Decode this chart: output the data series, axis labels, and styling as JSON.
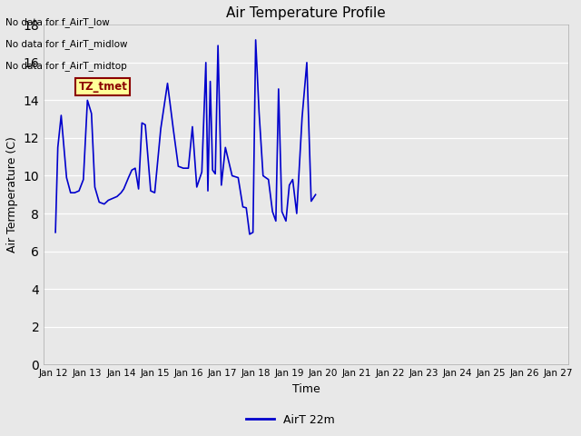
{
  "title": "Air Temperature Profile",
  "xlabel": "Time",
  "ylabel": "Air Termperature (C)",
  "line_color": "#0000cc",
  "line_label": "AirT 22m",
  "ylim": [
    0,
    18
  ],
  "yticks": [
    0,
    2,
    4,
    6,
    8,
    10,
    12,
    14,
    16,
    18
  ],
  "bg_color": "#e8e8e8",
  "annotations_text": [
    "No data for f_AirT_low",
    "No data for f_AirT_midlow",
    "No data for f_AirT_midtop"
  ],
  "tz_label": "TZ_tmet",
  "x_labels": [
    "Jan 12",
    "Jan 13",
    "Jan 14",
    "Jan 15",
    "Jan 16",
    "Jan 17",
    "Jan 18",
    "Jan 19",
    "Jan 20",
    "Jan 21",
    "Jan 22",
    "Jan 23",
    "Jan 24",
    "Jan 25",
    "Jan 26",
    "Jan 27"
  ],
  "x_num": [
    0,
    1,
    2,
    3,
    4,
    5,
    6,
    7,
    8,
    9,
    10,
    11,
    12,
    13,
    14,
    15
  ],
  "x_data": [
    0.05,
    0.12,
    0.22,
    0.38,
    0.5,
    0.62,
    0.75,
    0.88,
    1.0,
    1.12,
    1.22,
    1.35,
    1.5,
    1.62,
    1.75,
    1.88,
    2.0,
    2.08,
    2.15,
    2.22,
    2.32,
    2.42,
    2.52,
    2.62,
    2.72,
    2.88,
    3.0,
    3.18,
    3.38,
    3.55,
    3.7,
    3.85,
    4.0,
    4.12,
    4.25,
    4.4,
    4.52,
    4.58,
    4.65,
    4.72,
    4.8,
    4.88,
    4.98,
    5.1,
    5.3,
    5.48,
    5.62,
    5.72,
    5.82,
    5.92,
    6.0,
    6.1,
    6.22,
    6.38,
    6.5,
    6.6,
    6.68,
    6.78,
    6.9,
    7.0,
    7.1,
    7.22,
    7.38,
    7.52,
    7.65,
    7.78
  ],
  "y_data": [
    7.0,
    11.5,
    13.2,
    9.9,
    9.1,
    9.1,
    9.2,
    9.8,
    14.0,
    13.3,
    9.4,
    8.6,
    8.5,
    8.7,
    8.8,
    8.9,
    9.1,
    9.3,
    9.6,
    9.9,
    10.3,
    10.4,
    9.3,
    12.8,
    12.7,
    9.2,
    9.1,
    12.5,
    14.9,
    12.5,
    10.5,
    10.4,
    10.4,
    12.6,
    9.4,
    10.2,
    16.0,
    9.2,
    15.0,
    10.3,
    10.1,
    16.9,
    9.5,
    11.5,
    10.0,
    9.9,
    8.35,
    8.3,
    6.9,
    7.0,
    17.2,
    13.4,
    10.0,
    9.8,
    8.1,
    7.6,
    14.6,
    8.1,
    7.6,
    9.5,
    9.8,
    8.0,
    13.1,
    16.0,
    8.65,
    9.0
  ]
}
